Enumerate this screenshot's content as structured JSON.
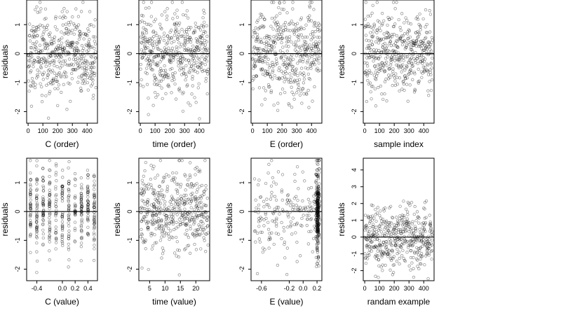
{
  "chart_data": [
    {
      "id": "c-order",
      "type": "scatter",
      "xlabel": "C (order)",
      "ylabel": "residuals",
      "xlim": [
        -10,
        470
      ],
      "ylim": [
        -2.4,
        1.85
      ],
      "xticks": [
        0,
        100,
        200,
        300,
        400
      ],
      "xtick_labels": [
        "0",
        "100",
        "200",
        "300",
        "400"
      ],
      "yticks": [
        -2,
        -1,
        0,
        1
      ],
      "ytick_labels": [
        "-2",
        "-1",
        "0",
        "1"
      ],
      "hline": 0,
      "pattern": "index",
      "n": 460,
      "spread": 0.7
    },
    {
      "id": "time-order",
      "type": "scatter",
      "xlabel": "time (order)",
      "ylabel": "residuals",
      "xlim": [
        -10,
        470
      ],
      "ylim": [
        -2.4,
        1.85
      ],
      "xticks": [
        0,
        100,
        200,
        300,
        400
      ],
      "xtick_labels": [
        "0",
        "100",
        "200",
        "300",
        "400"
      ],
      "yticks": [
        -2,
        -1,
        0,
        1
      ],
      "ytick_labels": [
        "-2",
        "-1",
        "0",
        "1"
      ],
      "hline": 0,
      "pattern": "index",
      "n": 460,
      "spread": 0.7
    },
    {
      "id": "e-order",
      "type": "scatter",
      "xlabel": "E (order)",
      "ylabel": "residuals",
      "xlim": [
        -10,
        470
      ],
      "ylim": [
        -2.4,
        1.85
      ],
      "xticks": [
        0,
        100,
        200,
        300,
        400
      ],
      "xtick_labels": [
        "0",
        "100",
        "200",
        "300",
        "400"
      ],
      "yticks": [
        -2,
        -1,
        0,
        1
      ],
      "ytick_labels": [
        "-2",
        "-1",
        "0",
        "1"
      ],
      "hline": 0,
      "pattern": "index",
      "n": 460,
      "spread": 0.75
    },
    {
      "id": "sample-index",
      "type": "scatter",
      "xlabel": "sample index",
      "ylabel": "residuals",
      "xlim": [
        -10,
        470
      ],
      "ylim": [
        -2.4,
        1.85
      ],
      "xticks": [
        0,
        100,
        200,
        300,
        400
      ],
      "xtick_labels": [
        "0",
        "100",
        "200",
        "300",
        "400"
      ],
      "yticks": [
        -2,
        -1,
        0,
        1
      ],
      "ytick_labels": [
        "-2",
        "-1",
        "0",
        "1"
      ],
      "hline": 0,
      "pattern": "index",
      "n": 460,
      "spread": 0.7
    },
    {
      "id": "c-value",
      "type": "scatter",
      "xlabel": "C (value)",
      "ylabel": "residuals",
      "xlim": [
        -0.56,
        0.55
      ],
      "ylim": [
        -2.4,
        1.85
      ],
      "xticks": [
        -0.4,
        0,
        0.2,
        0.4
      ],
      "xtick_labels": [
        "-0.4",
        "0.0",
        "0.2",
        "0.4"
      ],
      "yticks": [
        -2,
        -1,
        0,
        1
      ],
      "ytick_labels": [
        "-2",
        "-1",
        "0",
        "1"
      ],
      "hline": 0,
      "pattern": "columns",
      "columns": [
        -0.5,
        -0.4,
        -0.3,
        -0.2,
        -0.1,
        0,
        0.1,
        0.2,
        0.3,
        0.4,
        0.5
      ],
      "n": 460,
      "spread": 0.7
    },
    {
      "id": "time-value",
      "type": "scatter",
      "xlabel": "time (value)",
      "ylabel": "residuals",
      "xlim": [
        1.5,
        24.5
      ],
      "ylim": [
        -2.4,
        1.85
      ],
      "xticks": [
        5,
        10,
        15,
        20
      ],
      "xtick_labels": [
        "5",
        "10",
        "15",
        "20"
      ],
      "yticks": [
        -2,
        -1,
        0,
        1
      ],
      "ytick_labels": [
        "-2",
        "-1",
        "0",
        "1"
      ],
      "hline": 0,
      "pattern": "uniform",
      "n": 460,
      "spread": 0.7
    },
    {
      "id": "e-value",
      "type": "scatter",
      "xlabel": "E (value)",
      "ylabel": "residuals",
      "xlim": [
        -0.75,
        0.27
      ],
      "ylim": [
        -2.4,
        1.85
      ],
      "xticks": [
        -0.6,
        -0.2,
        0,
        0.2
      ],
      "xtick_labels": [
        "-0.6",
        "-0.2",
        "0.0",
        "0.2"
      ],
      "yticks": [
        -2,
        -1,
        0,
        1
      ],
      "ytick_labels": [
        "-2",
        "-1",
        "0",
        "1"
      ],
      "hline": 0,
      "pattern": "clustered",
      "cluster_center": 0.21,
      "n": 460,
      "spread": 0.75
    },
    {
      "id": "random-example",
      "type": "scatter",
      "xlabel": "randam example",
      "ylabel": "residuals",
      "xlim": [
        -10,
        470
      ],
      "ylim": [
        -2.6,
        4.7
      ],
      "xticks": [
        0,
        100,
        200,
        300,
        400
      ],
      "xtick_labels": [
        "0",
        "100",
        "200",
        "300",
        "400"
      ],
      "yticks": [
        -2,
        -1,
        0,
        1,
        2,
        3,
        4
      ],
      "ytick_labels": [
        "-2",
        "-1",
        "0",
        "1",
        "2",
        "3",
        "4"
      ],
      "hline": 0,
      "pattern": "index",
      "n": 460,
      "spread": 0.9
    }
  ]
}
